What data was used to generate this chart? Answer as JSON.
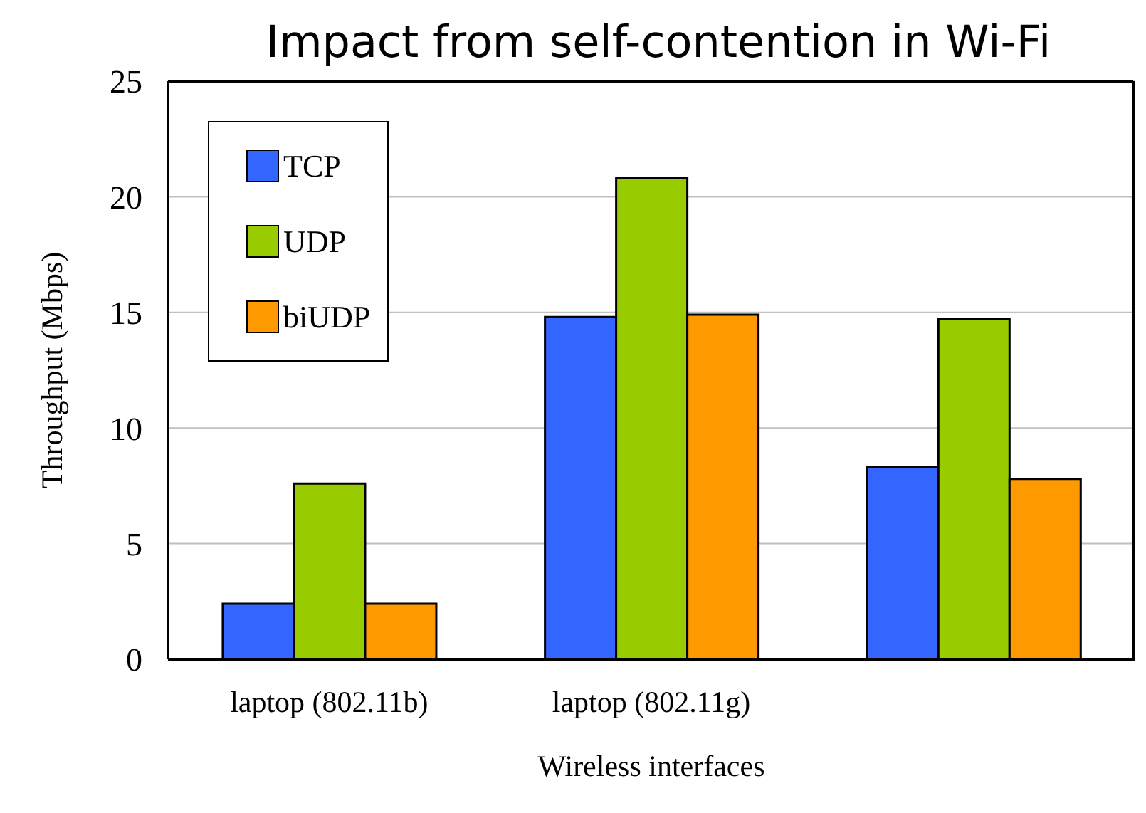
{
  "chart_data": {
    "type": "bar",
    "title": "Impact from self-contention in Wi-Fi",
    "xlabel": "Wireless interfaces",
    "ylabel": "Throughput (Mbps)",
    "categories": [
      "laptop (802.11b)",
      "laptop (802.11g)",
      null
    ],
    "series": [
      {
        "name": "TCP",
        "color": "#3366ff",
        "values": [
          2.4,
          14.8,
          8.3
        ]
      },
      {
        "name": "UDP",
        "color": "#99cc00",
        "values": [
          7.6,
          20.8,
          14.7
        ]
      },
      {
        "name": "biUDP",
        "color": "#ff9900",
        "values": [
          2.4,
          14.9,
          7.8
        ]
      }
    ],
    "ylim": [
      0,
      25
    ],
    "yticks": [
      0,
      5,
      10,
      15,
      20,
      25
    ],
    "grid": "y",
    "legend": "top left"
  }
}
